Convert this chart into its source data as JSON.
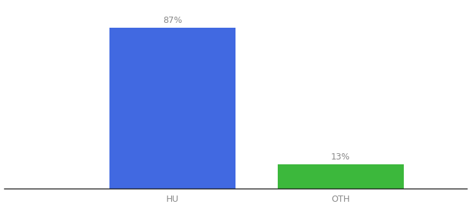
{
  "categories": [
    "HU",
    "OTH"
  ],
  "values": [
    87,
    13
  ],
  "bar_colors": [
    "#4169e1",
    "#3cb83c"
  ],
  "labels": [
    "87%",
    "13%"
  ],
  "background_color": "#ffffff",
  "text_color": "#888888",
  "label_fontsize": 9,
  "tick_fontsize": 9,
  "ylim": [
    0,
    100
  ],
  "bar_width": 0.6,
  "xlim": [
    -0.5,
    1.7
  ]
}
